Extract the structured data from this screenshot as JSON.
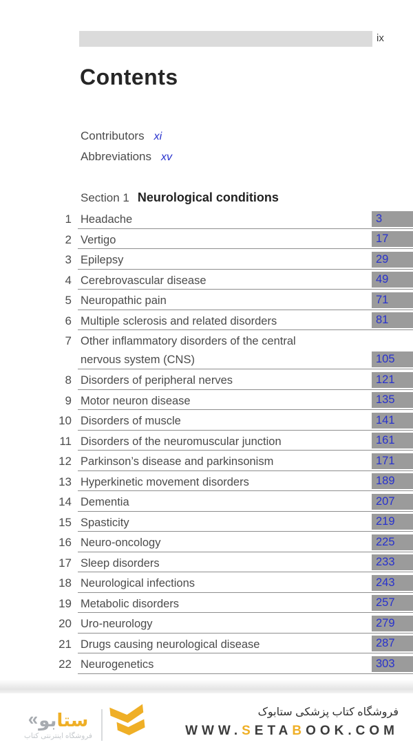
{
  "page": {
    "folio": "ix",
    "title": "Contents",
    "front_matter": [
      {
        "label": "Contributors",
        "page": "xi"
      },
      {
        "label": "Abbreviations",
        "page": "xv"
      }
    ],
    "section_prefix": "Section 1",
    "section_title": "Neurological conditions",
    "chapters": [
      {
        "num": "1",
        "title": "Headache",
        "page": "3"
      },
      {
        "num": "2",
        "title": "Vertigo",
        "page": "17"
      },
      {
        "num": "3",
        "title": "Epilepsy",
        "page": "29"
      },
      {
        "num": "4",
        "title": "Cerebrovascular disease",
        "page": "49"
      },
      {
        "num": "5",
        "title": "Neuropathic pain",
        "page": "71"
      },
      {
        "num": "6",
        "title": "Multiple sclerosis and related disorders",
        "page": "81"
      },
      {
        "num": "7",
        "title": "Other inflammatory disorders of the central",
        "title_line2": "nervous system (CNS)",
        "page": "105"
      },
      {
        "num": "8",
        "title": "Disorders of peripheral nerves",
        "page": "121"
      },
      {
        "num": "9",
        "title": "Motor neuron disease",
        "page": "135"
      },
      {
        "num": "10",
        "title": "Disorders of muscle",
        "page": "141"
      },
      {
        "num": "11",
        "title": "Disorders of the neuromuscular junction",
        "page": "161"
      },
      {
        "num": "12",
        "title": "Parkinson’s disease and parkinsonism",
        "page": "171"
      },
      {
        "num": "13",
        "title": "Hyperkinetic movement disorders",
        "page": "189"
      },
      {
        "num": "14",
        "title": "Dementia",
        "page": "207"
      },
      {
        "num": "15",
        "title": "Spasticity",
        "page": "219"
      },
      {
        "num": "16",
        "title": "Neuro-oncology",
        "page": "225"
      },
      {
        "num": "17",
        "title": "Sleep disorders",
        "page": "233"
      },
      {
        "num": "18",
        "title": "Neurological infections",
        "page": "243"
      },
      {
        "num": "19",
        "title": "Metabolic disorders",
        "page": "257"
      },
      {
        "num": "20",
        "title": "Uro-neurology",
        "page": "279"
      },
      {
        "num": "21",
        "title": "Drugs causing neurological disease",
        "page": "287"
      },
      {
        "num": "22",
        "title": "Neurogenetics",
        "page": "303"
      }
    ]
  },
  "footer": {
    "store_name_fa": "فروشگاه کتاب پزشکی ستابوک",
    "website": {
      "p1": "WWW.",
      "p2": "S",
      "p3": "ETA",
      "p4": "B",
      "p5": "OOK.COM"
    },
    "logo": {
      "guillemet": "«",
      "wordmark_gray": "بو",
      "wordmark_yellow": "ستا",
      "tagline_fa": "فروشگاه اینترنتی کتاب"
    },
    "colors": {
      "accent_yellow": "#EFAF26",
      "page_link_blue": "#2731CD",
      "page_box_gray": "#9B9B9B",
      "header_bar_gray": "#DBDBDB"
    }
  }
}
